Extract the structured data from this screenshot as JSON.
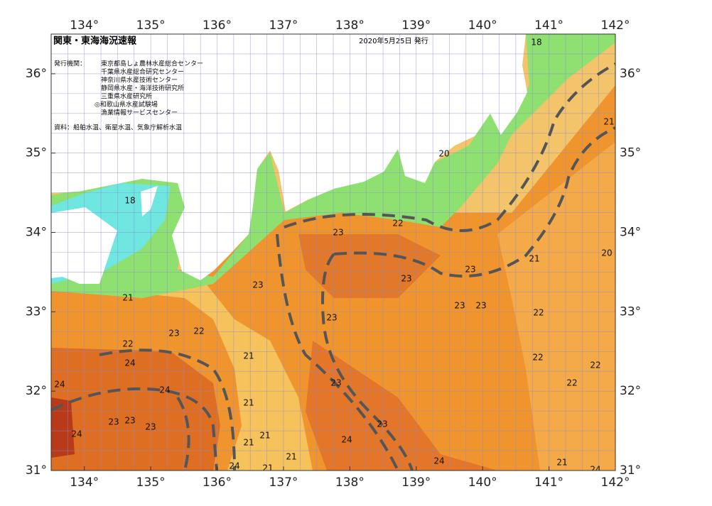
{
  "map": {
    "title": "関東・東海海況速報",
    "date": "2020年5月25日 発行",
    "issuer_label": "発行機関：",
    "issuers": [
      "東京都島しょ農林水産総合センター",
      "千葉県水産総合研究センター",
      "神奈川県水産技術センター",
      "静岡県水産・海洋技術研究所",
      "三重県水産研究所",
      "◎和歌山県水産試験場",
      "漁業情報サービスセンター"
    ],
    "source": "資料：船舶水温、衛星水温、気象庁解析水温",
    "lonlim": [
      133.5,
      142
    ],
    "latlim": [
      31,
      36.5
    ],
    "lon_ticks": [
      {
        "value": 134,
        "label": "134°"
      },
      {
        "value": 135,
        "label": "135°"
      },
      {
        "value": 136,
        "label": "136°"
      },
      {
        "value": 137,
        "label": "137°"
      },
      {
        "value": 138,
        "label": "138°"
      },
      {
        "value": 139,
        "label": "139°"
      },
      {
        "value": 140,
        "label": "140°"
      },
      {
        "value": 141,
        "label": "141°"
      },
      {
        "value": 142,
        "label": "142°"
      }
    ],
    "lat_ticks": [
      {
        "value": 31,
        "label": "31°"
      },
      {
        "value": 32,
        "label": "32°"
      },
      {
        "value": 33,
        "label": "33°"
      },
      {
        "value": 34,
        "label": "34°"
      },
      {
        "value": 35,
        "label": "35°"
      },
      {
        "value": 36,
        "label": "36°"
      }
    ],
    "contour_labels": [
      "18",
      "20",
      "18",
      "22",
      "23",
      "21",
      "20",
      "21",
      "23",
      "23",
      "23",
      "21",
      "23",
      "23",
      "22",
      "23",
      "23",
      "22",
      "22",
      "21",
      "22",
      "24",
      "22",
      "22",
      "23",
      "24",
      "24",
      "21",
      "23",
      "23",
      "23",
      "23",
      "24",
      "21",
      "21",
      "24",
      "21",
      "24",
      "24",
      "21",
      "21",
      "24"
    ]
  }
}
